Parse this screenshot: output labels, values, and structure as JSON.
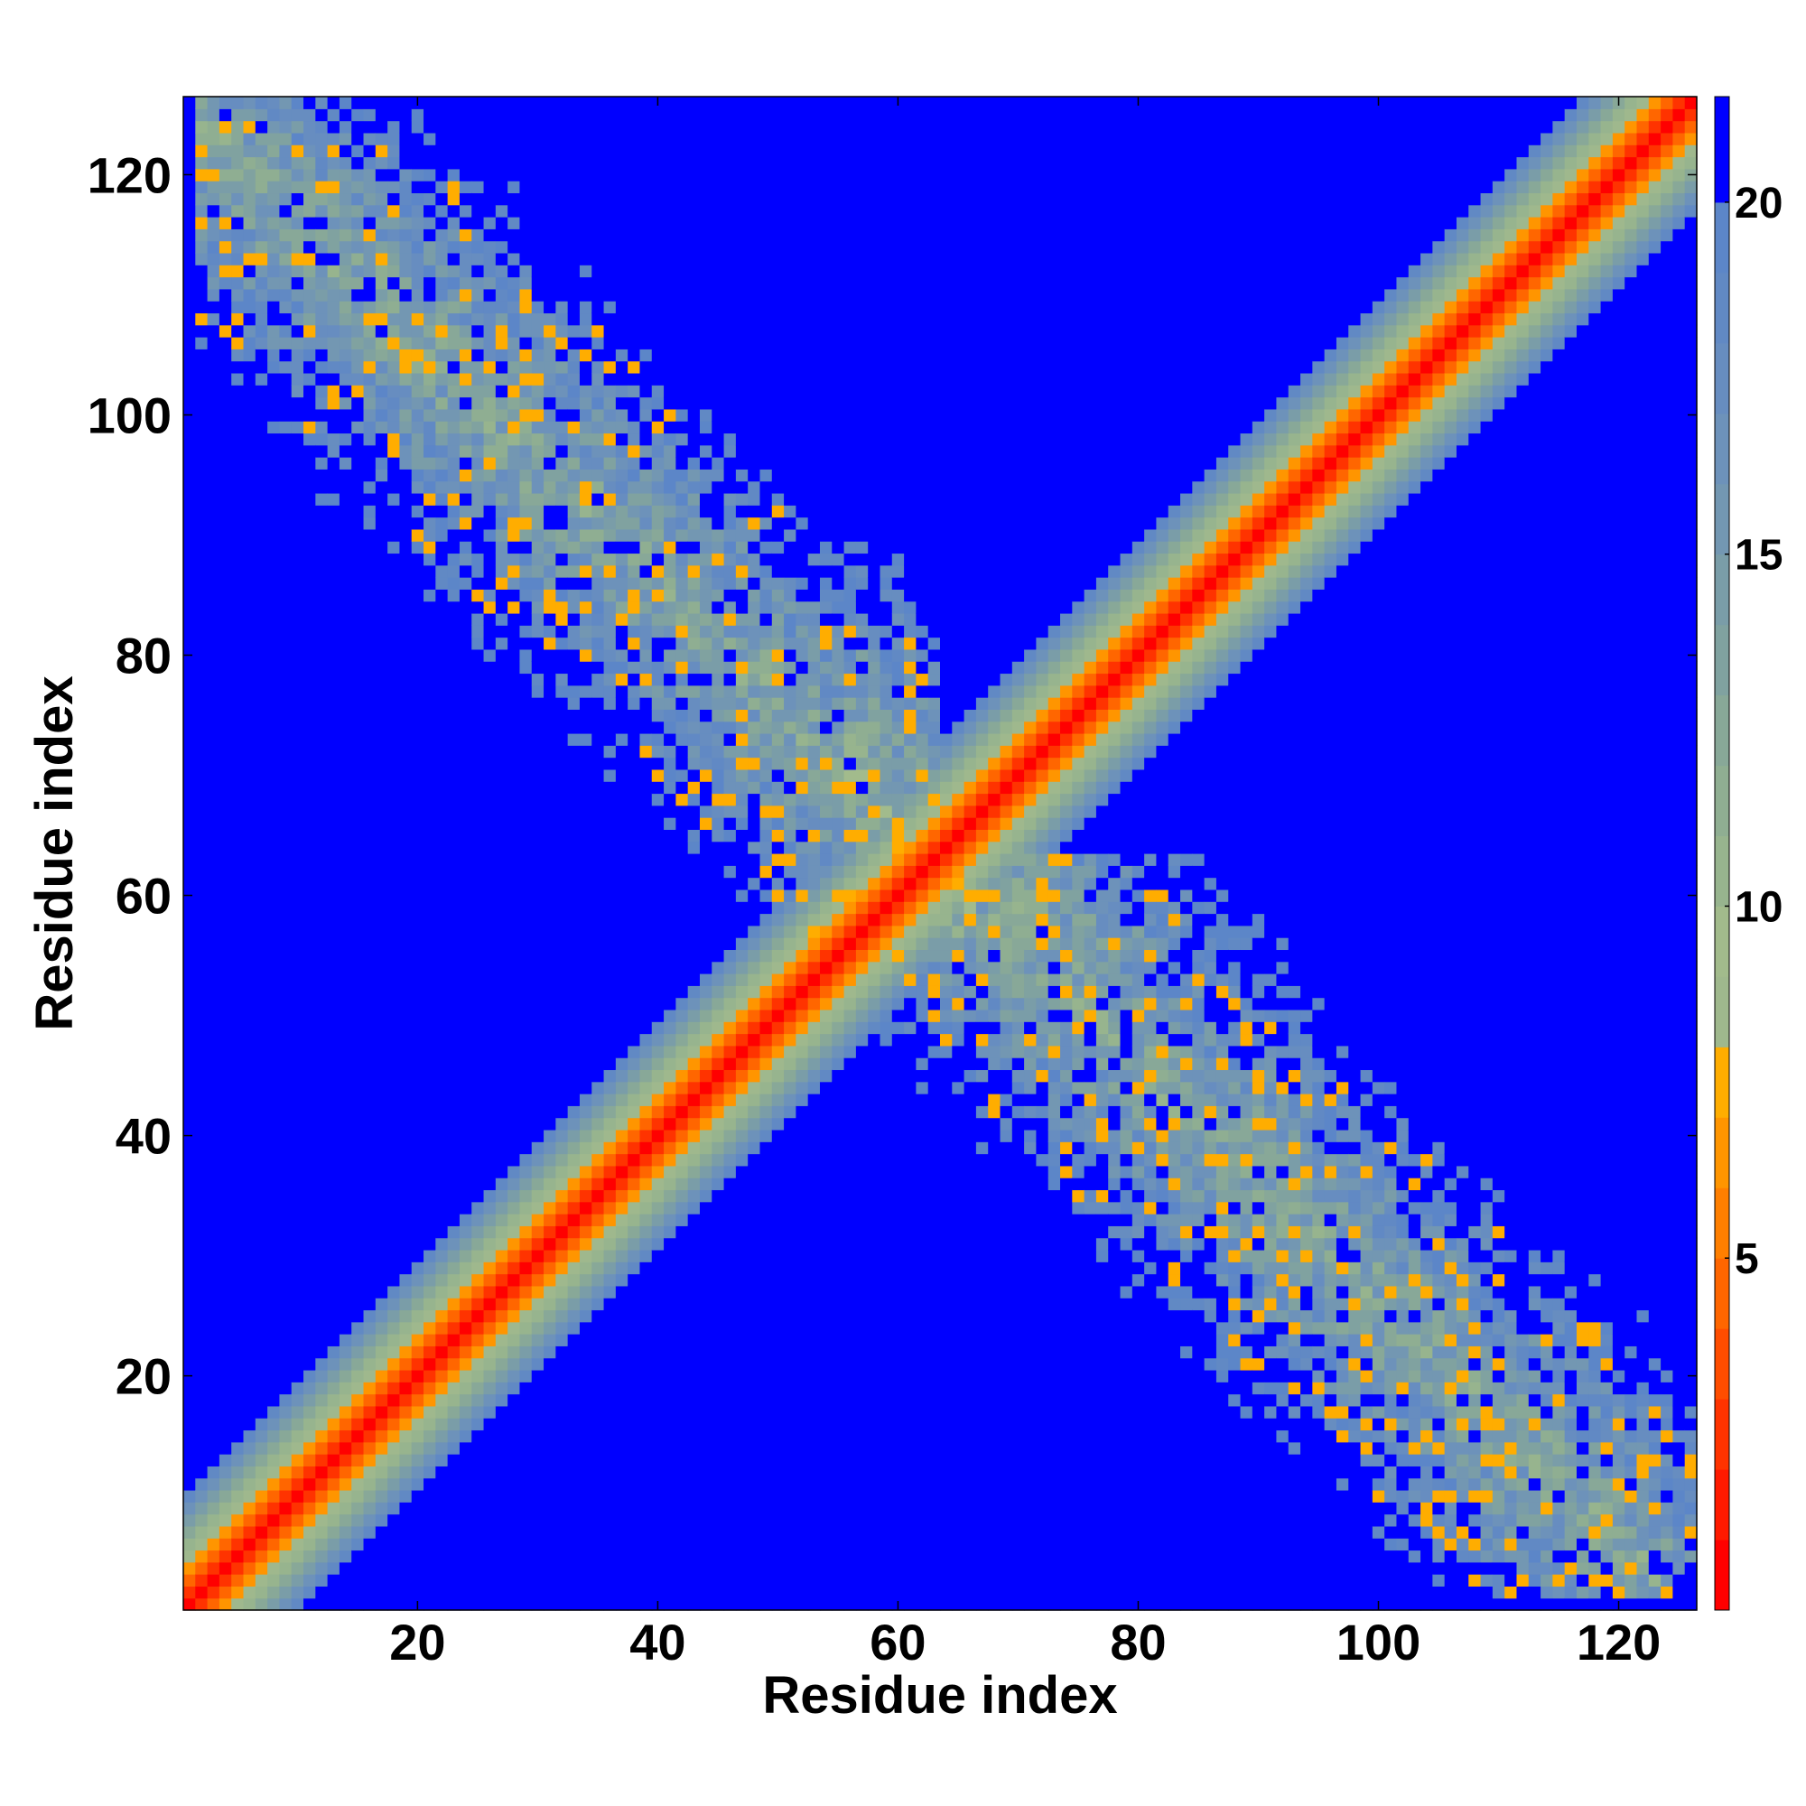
{
  "chart_data": {
    "type": "heatmap",
    "title": "",
    "xlabel": "Residue index",
    "ylabel": "Residue index",
    "n": 126,
    "xlim": [
      0.5,
      126.5
    ],
    "ylim": [
      0.5,
      126.5
    ],
    "x_ticks": [
      20,
      40,
      60,
      80,
      100,
      120
    ],
    "y_ticks": [
      20,
      40,
      60,
      80,
      100,
      120
    ],
    "x_tick_labels": [
      "20",
      "40",
      "60",
      "80",
      "100",
      "120"
    ],
    "y_tick_labels": [
      "20",
      "40",
      "60",
      "80",
      "100",
      "120"
    ],
    "colorbar": {
      "range": [
        0,
        21.5
      ],
      "ticks": [
        5,
        10,
        15,
        20
      ],
      "tick_labels": [
        "5",
        "10",
        "15",
        "20"
      ],
      "bins": [
        {
          "max": 1.0,
          "color": "#ff0000"
        },
        {
          "max": 2.0,
          "color": "#ff1a00"
        },
        {
          "max": 3.0,
          "color": "#ff3300"
        },
        {
          "max": 4.0,
          "color": "#ff4d00"
        },
        {
          "max": 5.0,
          "color": "#ff6600"
        },
        {
          "max": 6.0,
          "color": "#ff7f00"
        },
        {
          "max": 7.0,
          "color": "#ff9500"
        },
        {
          "max": 8.0,
          "color": "#ffad00"
        },
        {
          "max": 9.0,
          "color": "#9fb88d"
        },
        {
          "max": 10.0,
          "color": "#a2bb8c"
        },
        {
          "max": 11.0,
          "color": "#97b48e"
        },
        {
          "max": 12.0,
          "color": "#8fae92"
        },
        {
          "max": 13.0,
          "color": "#88a898"
        },
        {
          "max": 14.0,
          "color": "#80a2a0"
        },
        {
          "max": 15.0,
          "color": "#7a9da8"
        },
        {
          "max": 16.0,
          "color": "#7397b2"
        },
        {
          "max": 17.0,
          "color": "#6d92ba"
        },
        {
          "max": 18.0,
          "color": "#678dc0"
        },
        {
          "max": 19.0,
          "color": "#6189c4"
        },
        {
          "max": 20.0,
          "color": "#5c86c8"
        },
        {
          "max": 21.5,
          "color": "#0000ff"
        }
      ]
    },
    "colors": {
      "background_high": "#0000ff",
      "low": "#ff0000",
      "mid": "#ffa500",
      "band": "#a0b98c",
      "outer": "#6a8fc0"
    },
    "structure": {
      "diagonal_distance_per_residue": 2.1,
      "cross_diagonal_sum": 126,
      "cross_diagonal_span": [
        2,
        104
      ],
      "cross_diagonal_center": 63
    }
  }
}
